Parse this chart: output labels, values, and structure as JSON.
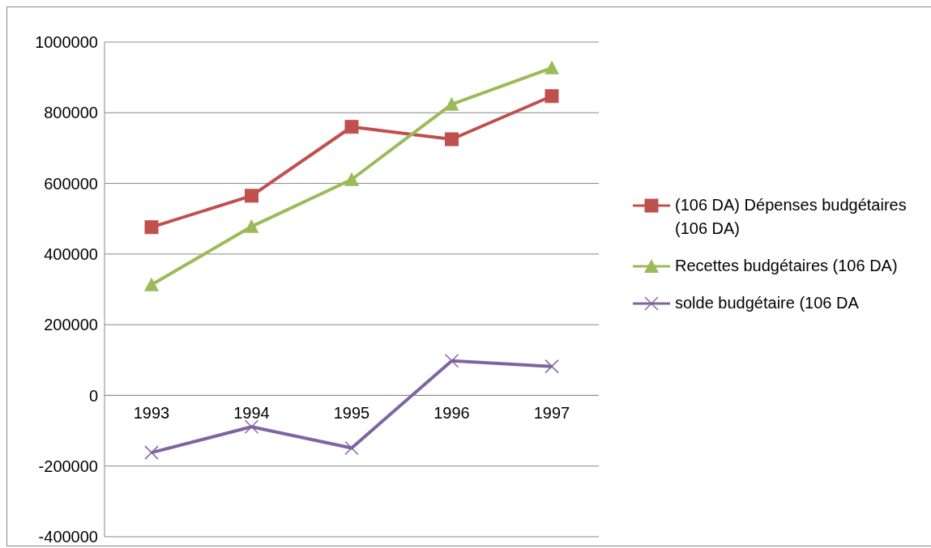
{
  "chart_data": {
    "type": "line",
    "categories": [
      "1993",
      "1994",
      "1995",
      "1996",
      "1997"
    ],
    "series": [
      {
        "name": "(106 DA) Dépenses budgétaires (106 DA)",
        "color": "#c0504d",
        "marker": "square",
        "values": [
          476000,
          565000,
          760000,
          725000,
          847000
        ]
      },
      {
        "name": "Recettes budgétaires (106 DA)",
        "color": "#9bbb59",
        "marker": "triangle",
        "values": [
          313000,
          478000,
          611000,
          824000,
          927000
        ]
      },
      {
        "name": "solde budgétaire (106 DA",
        "color": "#8064a2",
        "marker": "cross",
        "values": [
          -162000,
          -89000,
          -149000,
          98000,
          82000
        ]
      }
    ],
    "ylim": [
      -400000,
      1000000
    ],
    "yticks": [
      -400000,
      -200000,
      0,
      200000,
      400000,
      600000,
      800000,
      1000000
    ],
    "grid": "y",
    "legend": "right"
  }
}
